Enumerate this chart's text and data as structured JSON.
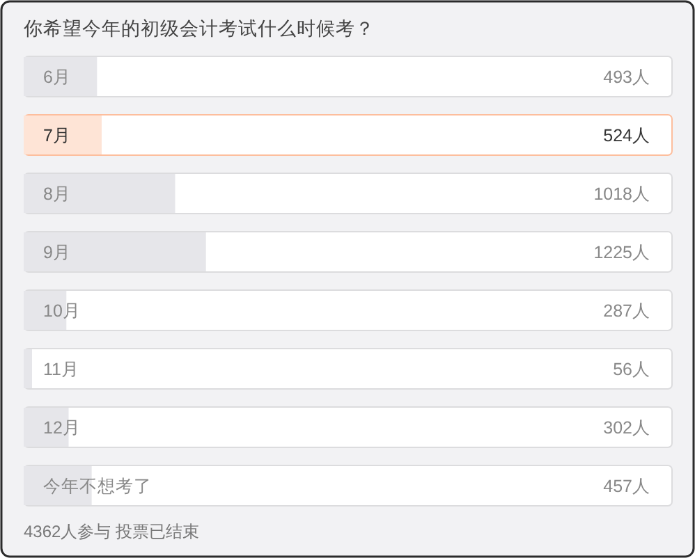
{
  "chart_data": {
    "type": "bar",
    "orientation": "horizontal",
    "title": "你希望今年的初级会计考试什么时候考？",
    "categories": [
      "6月",
      "7月",
      "8月",
      "9月",
      "10月",
      "11月",
      "12月",
      "今年不想考了"
    ],
    "values": [
      493,
      524,
      1018,
      1225,
      287,
      56,
      302,
      457
    ],
    "value_labels": [
      "493人",
      "524人",
      "1018人",
      "1225人",
      "287人",
      "56人",
      "302人",
      "457人"
    ],
    "colors": [
      "#e6e6ea",
      "#fee4d6",
      "#e6e6ea",
      "#e6e6ea",
      "#e6e6ea",
      "#e6e6ea",
      "#e6e6ea",
      "#e6e6ea"
    ],
    "xlim": [
      0,
      4362
    ],
    "tick_labels": "y",
    "annotations": [
      "4362人参与 投票已结束"
    ]
  }
}
